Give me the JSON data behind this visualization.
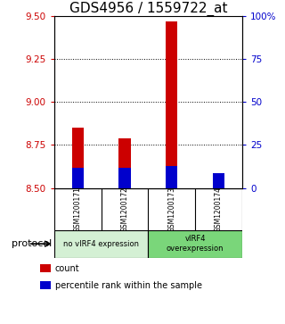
{
  "title": "GDS4956 / 1559722_at",
  "samples": [
    "GSM1200171",
    "GSM1200172",
    "GSM1200173",
    "GSM1200174"
  ],
  "red_values": [
    8.85,
    8.79,
    9.47,
    8.55
  ],
  "blue_values": [
    8.615,
    8.615,
    8.625,
    8.585
  ],
  "ymin": 8.5,
  "ymax": 9.5,
  "y_left_ticks": [
    8.5,
    8.75,
    9.0,
    9.25,
    9.5
  ],
  "y_right_ticks": [
    0,
    25,
    50,
    75,
    100
  ],
  "y_right_labels": [
    "0",
    "25",
    "50",
    "75",
    "100%"
  ],
  "dotted_lines": [
    8.75,
    9.0,
    9.25
  ],
  "bar_base": 8.5,
  "bar_width": 0.25,
  "group_labels": [
    "no vIRF4 expression",
    "vIRF4\noverexpression"
  ],
  "group_ranges": [
    [
      0,
      2
    ],
    [
      2,
      4
    ]
  ],
  "group_colors_light": "#d4f0d4",
  "group_colors_dark": "#7ad67a",
  "protocol_label": "protocol",
  "legend_items": [
    {
      "color": "#cc0000",
      "label": "count"
    },
    {
      "color": "#0000cc",
      "label": "percentile rank within the sample"
    }
  ],
  "red_color": "#cc0000",
  "blue_color": "#0000cc",
  "left_tick_color": "#cc0000",
  "right_tick_color": "#0000cc",
  "title_fontsize": 11,
  "label_fontsize": 7.5,
  "background_color": "#ffffff",
  "plot_bg_color": "#ffffff",
  "sample_box_color": "#cccccc"
}
